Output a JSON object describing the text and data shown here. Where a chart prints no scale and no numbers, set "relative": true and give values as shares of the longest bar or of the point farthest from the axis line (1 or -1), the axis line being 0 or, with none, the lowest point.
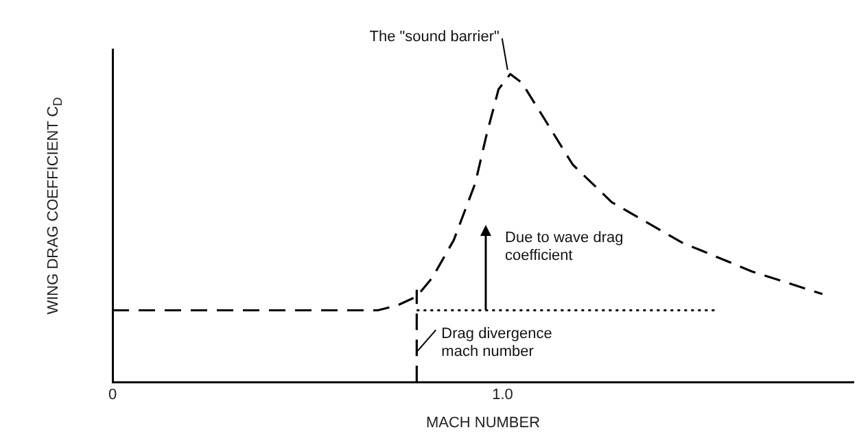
{
  "chart_data": {
    "type": "line",
    "xlabel": "MACH NUMBER",
    "ylabel": "WING DRAG COEFFICIENT C$_{D}$",
    "relative": true,
    "xlim": [
      0,
      1.9
    ],
    "xticks": [
      0,
      {
        "value": 1,
        "label": "1.0"
      }
    ],
    "grid": false,
    "legend": false,
    "marker": "none",
    "series": [
      {
        "color": "#000000",
        "line_style": "dashed",
        "x": [
          0,
          0.68,
          0.73,
          0.78,
          0.82,
          0.875,
          0.93,
          0.96,
          0.99,
          1.02,
          1.05,
          1.11,
          1.18,
          1.28,
          1.46,
          1.64,
          1.82
        ],
        "values": [
          0.233,
          0.233,
          0.249,
          0.278,
          0.339,
          0.461,
          0.645,
          0.808,
          0.951,
          1,
          0.971,
          0.849,
          0.706,
          0.584,
          0.453,
          0.359,
          0.286
        ]
      },
      {
        "color": "#000000",
        "line_style": "dotted",
        "x": [
          0.78,
          1.55
        ],
        "values": [
          0.233,
          0.233
        ]
      }
    ],
    "ref_lines": [
      {
        "axis": "x",
        "value": 0.78,
        "label": "Drag divergence mach number",
        "color": "#000000",
        "line_style": "dashed"
      }
    ],
    "annotations": [
      {
        "text": "The \"sound barrier\"",
        "x": 1.02,
        "y": 1
      },
      "Due to wave drag coefficient"
    ]
  }
}
